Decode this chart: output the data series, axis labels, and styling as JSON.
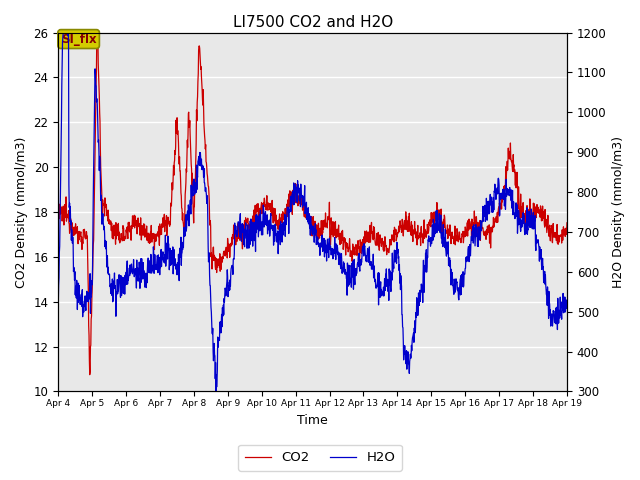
{
  "title": "LI7500 CO2 and H2O",
  "xlabel": "Time",
  "ylabel_left": "CO2 Density (mmol/m3)",
  "ylabel_right": "H2O Density (mmol/m3)",
  "ylim_left": [
    10,
    26
  ],
  "ylim_right": [
    300,
    1200
  ],
  "x_tick_labels": [
    "Apr 4",
    "Apr 5",
    "Apr 6",
    "Apr 7",
    "Apr 8",
    "Apr 9",
    "Apr 10",
    "Apr 11",
    "Apr 12",
    "Apr 13",
    "Apr 14",
    "Apr 15",
    "Apr 16",
    "Apr 17",
    "Apr 18",
    "Apr 19"
  ],
  "co2_color": "#cc0000",
  "h2o_color": "#0000cc",
  "bg_color": "#e8e8e8",
  "annotation_text": "SI_flx",
  "annotation_bg": "#d4cc00",
  "annotation_border": "#888800",
  "legend_co2": "CO2",
  "legend_h2o": "H2O",
  "fig_bg": "#ffffff",
  "linewidth": 0.9,
  "yticks_left": [
    10,
    12,
    14,
    16,
    18,
    20,
    22,
    24,
    26
  ],
  "yticks_right": [
    300,
    400,
    500,
    600,
    700,
    800,
    900,
    1000,
    1100,
    1200
  ]
}
